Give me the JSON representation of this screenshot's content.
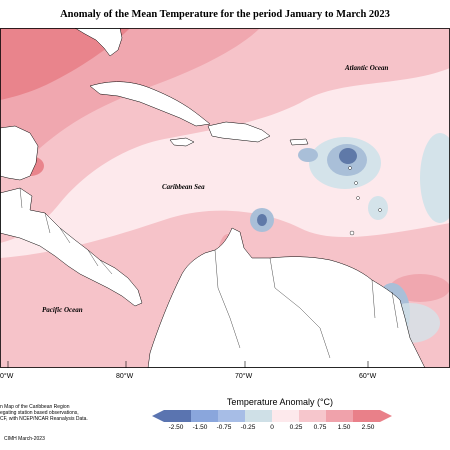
{
  "title": "Anomaly of the Mean Temperature for the period January to March 2023",
  "labels": {
    "atlantic": "Atlantic Ocean",
    "caribbean": "Caribbean Sea",
    "pacific": "Pacific Ocean"
  },
  "longitudes": [
    "0°W",
    "80°W",
    "70°W",
    "60°W"
  ],
  "note_lines": [
    "n Map of the Caribbean Region",
    "egating station based observations,",
    "CF, with NCEP/NCAR Reanalysis Data."
  ],
  "credit": "CIMH March-2023",
  "legend": {
    "title": "Temperature Anomaly (°C)",
    "ticks": [
      "-2.50",
      "-1.50",
      "-0.75",
      "-0.25",
      "0",
      "0.25",
      "0.75",
      "1.50",
      "2.50"
    ],
    "colors": [
      "#5a74b0",
      "#8aa6dc",
      "#a7bde6",
      "#cfe0e7",
      "#fde9ec",
      "#f6c6cc",
      "#f0a2ab",
      "#e98089"
    ]
  },
  "colors": {
    "warm_light": "#fbdde1",
    "warm_mid": "#f6c3c9",
    "warm_strong": "#f0a7af",
    "warm_max": "#e9848c",
    "cool_light": "#d4e3ea",
    "cool_mid": "#a9bfd8",
    "cool_strong": "#5f79a8"
  }
}
